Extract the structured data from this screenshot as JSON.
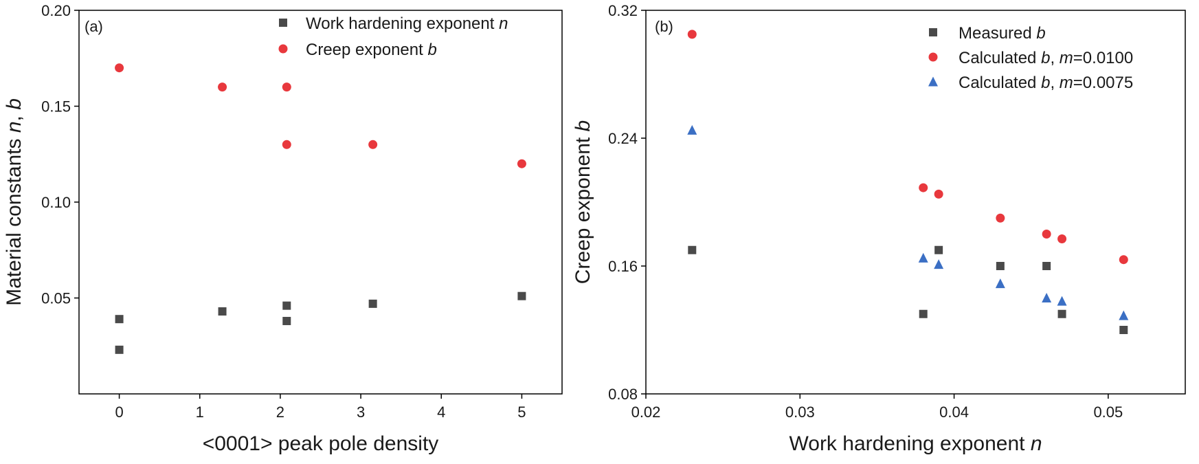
{
  "colors": {
    "square": "#4a4a4a",
    "circle": "#e8383d",
    "triangle": "#3b6fc4"
  },
  "chart_data": [
    {
      "type": "scatter",
      "panel_label": "(a)",
      "xlabel": "<0001> peak  pole  density",
      "ylabel_parts": [
        "Material constants ",
        "n",
        ", ",
        "b"
      ],
      "xlim": [
        -0.5,
        5.5
      ],
      "ylim": [
        0.0,
        0.2
      ],
      "xticks": [
        "0",
        "1",
        "2",
        "3",
        "4",
        "5"
      ],
      "yticks": [
        "0.05",
        "0.10",
        "0.15",
        "0.20"
      ],
      "legend_position": "top-right",
      "series": [
        {
          "name_parts": [
            "Work hardening exponent ",
            "n"
          ],
          "marker": "square",
          "points": [
            [
              0.0,
              0.039
            ],
            [
              0.0,
              0.023
            ],
            [
              1.28,
              0.043
            ],
            [
              2.08,
              0.046
            ],
            [
              2.08,
              0.038
            ],
            [
              3.15,
              0.047
            ],
            [
              5.0,
              0.051
            ]
          ]
        },
        {
          "name_parts": [
            "Creep exponent ",
            "b"
          ],
          "marker": "circle",
          "points": [
            [
              0.0,
              0.17
            ],
            [
              1.28,
              0.16
            ],
            [
              2.08,
              0.16
            ],
            [
              2.08,
              0.13
            ],
            [
              3.15,
              0.13
            ],
            [
              5.0,
              0.12
            ]
          ]
        }
      ]
    },
    {
      "type": "scatter",
      "panel_label": "(b)",
      "xlabel_parts": [
        "Work hardening exponent ",
        "n"
      ],
      "ylabel_parts": [
        "Creep exponent ",
        "b"
      ],
      "xlim": [
        0.02,
        0.055
      ],
      "ylim": [
        0.08,
        0.32
      ],
      "xticks": [
        "0.02",
        "0.03",
        "0.04",
        "0.05"
      ],
      "yticks": [
        "0.08",
        "0.16",
        "0.24",
        "0.32"
      ],
      "legend_position": "top-right",
      "series": [
        {
          "name_parts": [
            "Measured  ",
            "b",
            ""
          ],
          "marker": "square",
          "points": [
            [
              0.023,
              0.17
            ],
            [
              0.038,
              0.13
            ],
            [
              0.039,
              0.17
            ],
            [
              0.043,
              0.16
            ],
            [
              0.046,
              0.16
            ],
            [
              0.047,
              0.13
            ],
            [
              0.051,
              0.12
            ]
          ]
        },
        {
          "name_parts": [
            "Calculated ",
            "b",
            ", ",
            "m",
            "=0.0100"
          ],
          "marker": "circle",
          "points": [
            [
              0.023,
              0.305
            ],
            [
              0.038,
              0.209
            ],
            [
              0.039,
              0.205
            ],
            [
              0.043,
              0.19
            ],
            [
              0.046,
              0.18
            ],
            [
              0.047,
              0.177
            ],
            [
              0.051,
              0.164
            ]
          ]
        },
        {
          "name_parts": [
            "Calculated ",
            "b",
            ", ",
            "m",
            "=0.0075"
          ],
          "marker": "triangle",
          "points": [
            [
              0.023,
              0.245
            ],
            [
              0.038,
              0.165
            ],
            [
              0.039,
              0.161
            ],
            [
              0.043,
              0.149
            ],
            [
              0.046,
              0.14
            ],
            [
              0.047,
              0.138
            ],
            [
              0.051,
              0.129
            ]
          ]
        }
      ]
    }
  ]
}
